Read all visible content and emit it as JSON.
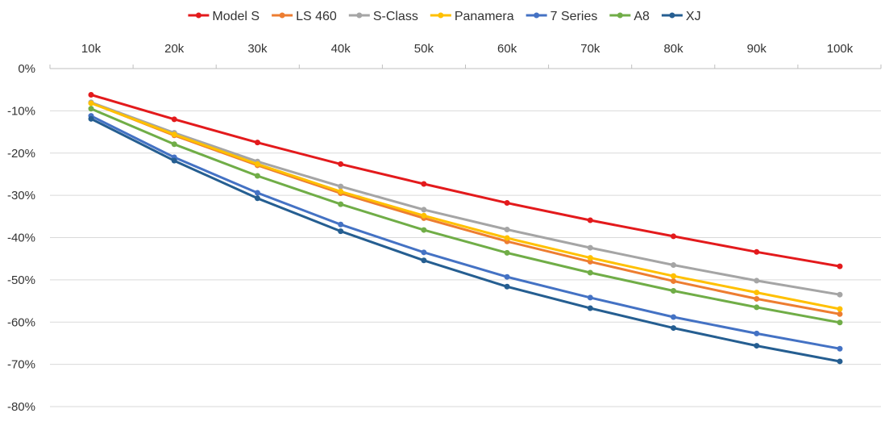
{
  "chart_data": {
    "type": "line",
    "categories": [
      "10k",
      "20k",
      "30k",
      "40k",
      "50k",
      "60k",
      "70k",
      "80k",
      "90k",
      "100k"
    ],
    "y_ticks": [
      "0%",
      "-10%",
      "-20%",
      "-30%",
      "-40%",
      "-50%",
      "-60%",
      "-70%",
      "-80%"
    ],
    "ylim": [
      -80,
      0
    ],
    "y_unit": "%",
    "grid": true,
    "legend_position": "top",
    "x_axis_position": "top",
    "series": [
      {
        "name": "Model S",
        "color": "#e31a1c",
        "values": [
          -6.2,
          -12.0,
          -17.5,
          -22.6,
          -27.3,
          -31.8,
          -35.9,
          -39.7,
          -43.4,
          -46.8
        ]
      },
      {
        "name": "LS 460",
        "color": "#ed7d31",
        "values": [
          -8.1,
          -15.8,
          -22.9,
          -29.5,
          -35.4,
          -40.9,
          -45.7,
          -50.3,
          -54.5,
          -58.1
        ]
      },
      {
        "name": "S-Class",
        "color": "#a5a5a5",
        "values": [
          -8.0,
          -15.2,
          -22.0,
          -27.9,
          -33.4,
          -38.1,
          -42.4,
          -46.5,
          -50.2,
          -53.5
        ]
      },
      {
        "name": "Panamera",
        "color": "#ffc000",
        "values": [
          -8.2,
          -15.6,
          -22.6,
          -29.1,
          -34.8,
          -40.1,
          -44.8,
          -49.1,
          -53.0,
          -56.9
        ]
      },
      {
        "name": "7 Series",
        "color": "#4472c4",
        "values": [
          -11.2,
          -21.0,
          -29.4,
          -36.9,
          -43.5,
          -49.3,
          -54.2,
          -58.8,
          -62.7,
          -66.3
        ]
      },
      {
        "name": "A8",
        "color": "#70ad47",
        "values": [
          -9.5,
          -17.9,
          -25.4,
          -32.1,
          -38.2,
          -43.6,
          -48.3,
          -52.6,
          -56.5,
          -60.1
        ]
      },
      {
        "name": "XJ",
        "color": "#255e91",
        "values": [
          -11.9,
          -21.8,
          -30.7,
          -38.5,
          -45.4,
          -51.6,
          -56.7,
          -61.4,
          -65.6,
          -69.3
        ]
      }
    ]
  }
}
